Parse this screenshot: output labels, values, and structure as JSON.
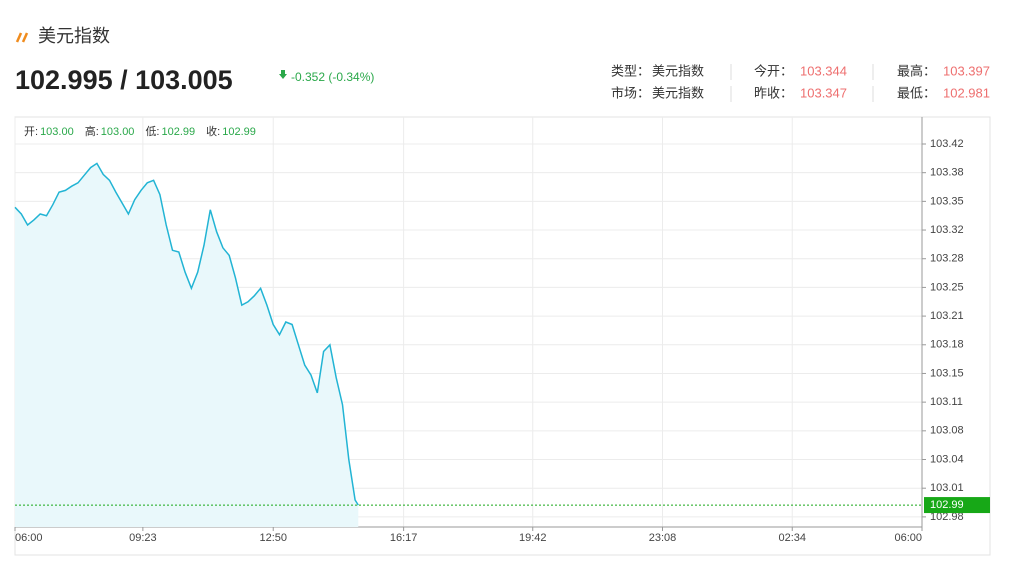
{
  "header": {
    "title": "美元指数",
    "price": "102.995 / 103.005",
    "change": "-0.352 (-0.34%)",
    "info": [
      {
        "label": "类型：",
        "value": "美元指数"
      },
      {
        "label": "今开：",
        "value": "103.344"
      },
      {
        "label": "最高：",
        "value": "103.397"
      },
      {
        "label": "市场：",
        "value": "美元指数"
      },
      {
        "label": "昨收：",
        "value": "103.347"
      },
      {
        "label": "最低：",
        "value": "102.981"
      }
    ]
  },
  "chart_data": {
    "type": "line",
    "color": "#22b4d4",
    "fill": "#e9f8fb",
    "grid": true,
    "ohlc": [
      {
        "label": "开:",
        "value": "103.00"
      },
      {
        "label": "高:",
        "value": "103.00"
      },
      {
        "label": "低:",
        "value": "102.99"
      },
      {
        "label": "收:",
        "value": "102.99"
      }
    ],
    "x": [
      "06:00",
      "06:10",
      "06:20",
      "06:30",
      "06:40",
      "06:50",
      "07:00",
      "07:10",
      "07:20",
      "07:30",
      "07:40",
      "07:50",
      "08:00",
      "08:10",
      "08:20",
      "08:30",
      "08:40",
      "08:50",
      "09:00",
      "09:10",
      "09:20",
      "09:30",
      "09:40",
      "09:50",
      "10:00",
      "10:10",
      "10:20",
      "10:30",
      "10:40",
      "10:50",
      "11:00",
      "11:10",
      "11:20",
      "11:30",
      "11:40",
      "11:50",
      "12:00",
      "12:10",
      "12:20",
      "12:30",
      "12:40",
      "12:50",
      "13:00",
      "13:10",
      "13:20",
      "13:30",
      "13:40",
      "13:50",
      "14:00",
      "14:10",
      "14:20",
      "14:30",
      "14:40",
      "14:50",
      "15:00",
      "15:05"
    ],
    "values": [
      103.343,
      103.335,
      103.322,
      103.328,
      103.335,
      103.333,
      103.346,
      103.361,
      103.363,
      103.368,
      103.372,
      103.381,
      103.39,
      103.395,
      103.382,
      103.375,
      103.361,
      103.348,
      103.335,
      103.352,
      103.363,
      103.372,
      103.375,
      103.358,
      103.322,
      103.292,
      103.29,
      103.266,
      103.247,
      103.266,
      103.298,
      103.34,
      103.314,
      103.295,
      103.286,
      103.259,
      103.227,
      103.231,
      103.238,
      103.247,
      103.227,
      103.204,
      103.192,
      103.207,
      103.204,
      103.18,
      103.156,
      103.144,
      103.123,
      103.172,
      103.18,
      103.141,
      103.109,
      103.044,
      102.996,
      102.99
    ],
    "last_price": 102.99,
    "last_color": "#17a817",
    "ylim": [
      102.964,
      103.45
    ],
    "yticks": [
      {
        "value": 102.976,
        "label": "102.98"
      },
      {
        "value": 103.01,
        "label": "103.01"
      },
      {
        "value": 103.044,
        "label": "103.04"
      },
      {
        "value": 103.078,
        "label": "103.08"
      },
      {
        "value": 103.112,
        "label": "103.11"
      },
      {
        "value": 103.146,
        "label": "103.15"
      },
      {
        "value": 103.18,
        "label": "103.18"
      },
      {
        "value": 103.214,
        "label": "103.21"
      },
      {
        "value": 103.248,
        "label": "103.25"
      },
      {
        "value": 103.282,
        "label": "103.28"
      },
      {
        "value": 103.316,
        "label": "103.32"
      },
      {
        "value": 103.35,
        "label": "103.35"
      },
      {
        "value": 103.384,
        "label": "103.38"
      },
      {
        "value": 103.418,
        "label": "103.42"
      }
    ],
    "xticks": [
      "06:00",
      "09:23",
      "12:50",
      "16:17",
      "19:42",
      "23:08",
      "02:34",
      "06:00"
    ]
  }
}
